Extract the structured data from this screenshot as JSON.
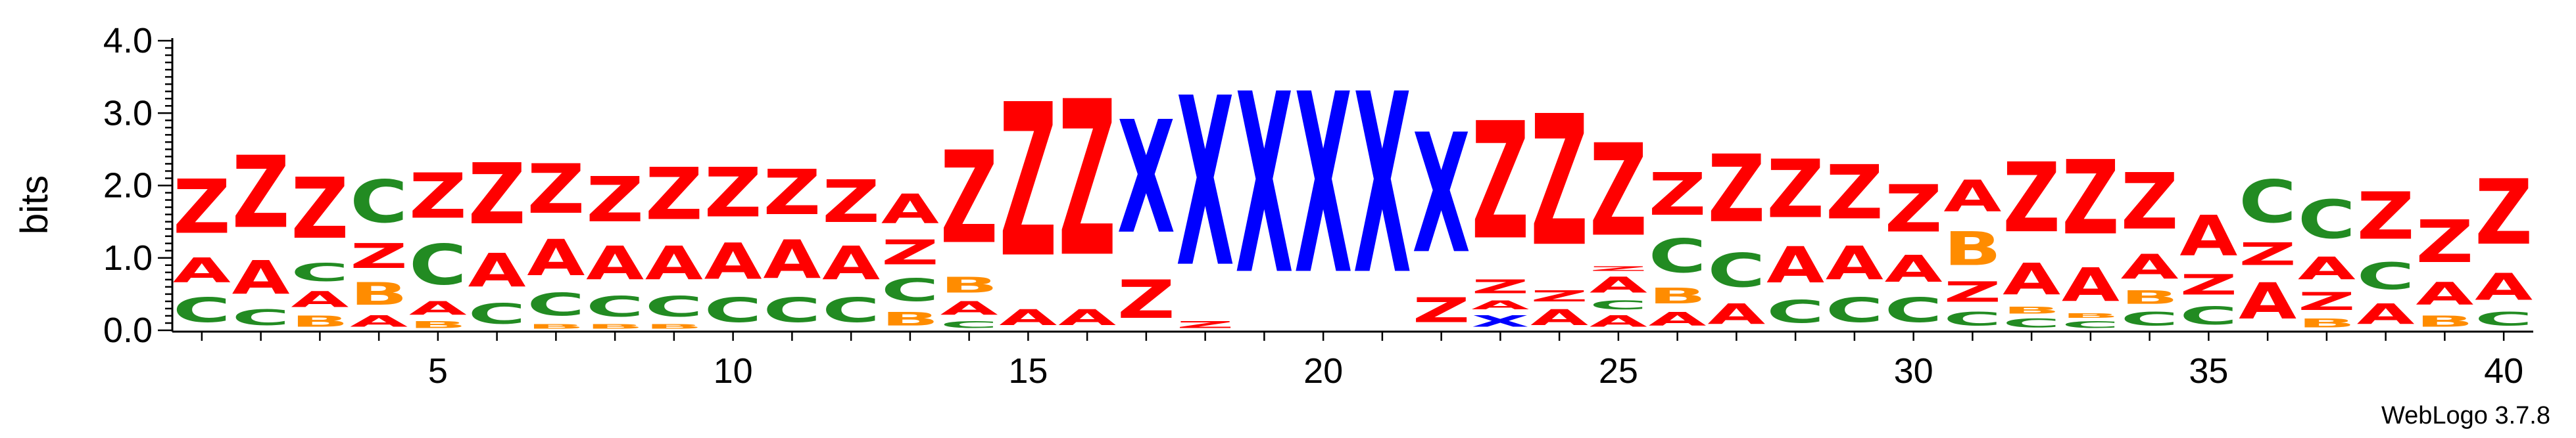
{
  "chart_data": {
    "type": "sequence_logo",
    "ylabel": "bits",
    "xlabel": "",
    "ylim": [
      0,
      4.0
    ],
    "yticks": [
      "0.0",
      "1.0",
      "2.0",
      "3.0",
      "4.0"
    ],
    "xticks": [
      5,
      10,
      15,
      20,
      25,
      30,
      35,
      40
    ],
    "xrange": [
      1,
      40
    ],
    "credit": "WebLogo 3.7.8",
    "colors": {
      "Z": "#ff0000",
      "A": "#ff0000",
      "X": "#0000ff",
      "C": "#228b22",
      "B": "#ff8c00"
    },
    "positions": [
      {
        "pos": 1,
        "stack": [
          [
            "C",
            0.55
          ],
          [
            "A",
            0.55
          ],
          [
            "Z",
            1.2
          ]
        ]
      },
      {
        "pos": 2,
        "stack": [
          [
            "C",
            0.35
          ],
          [
            "A",
            0.75
          ],
          [
            "Z",
            1.6
          ]
        ]
      },
      {
        "pos": 3,
        "stack": [
          [
            "B",
            0.25
          ],
          [
            "A",
            0.35
          ],
          [
            "C",
            0.4
          ],
          [
            "Z",
            1.35
          ]
        ]
      },
      {
        "pos": 4,
        "stack": [
          [
            "A",
            0.25
          ],
          [
            "B",
            0.5
          ],
          [
            "Z",
            0.55
          ],
          [
            "C",
            0.95
          ]
        ]
      },
      {
        "pos": 5,
        "stack": [
          [
            "B",
            0.15
          ],
          [
            "A",
            0.3
          ],
          [
            "C",
            0.9
          ],
          [
            "Z",
            1.0
          ]
        ]
      },
      {
        "pos": 6,
        "stack": [
          [
            "C",
            0.45
          ],
          [
            "A",
            0.75
          ],
          [
            "Z",
            1.35
          ]
        ]
      },
      {
        "pos": 7,
        "stack": [
          [
            "B",
            0.1
          ],
          [
            "C",
            0.5
          ],
          [
            "A",
            0.8
          ],
          [
            "Z",
            1.1
          ]
        ]
      },
      {
        "pos": 8,
        "stack": [
          [
            "B",
            0.1
          ],
          [
            "C",
            0.45
          ],
          [
            "A",
            0.75
          ],
          [
            "Z",
            1.0
          ]
        ]
      },
      {
        "pos": 9,
        "stack": [
          [
            "B",
            0.1
          ],
          [
            "C",
            0.45
          ],
          [
            "A",
            0.75
          ],
          [
            "Z",
            1.15
          ]
        ]
      },
      {
        "pos": 10,
        "stack": [
          [
            "C",
            0.55
          ],
          [
            "A",
            0.8
          ],
          [
            "Z",
            1.1
          ]
        ]
      },
      {
        "pos": 11,
        "stack": [
          [
            "C",
            0.55
          ],
          [
            "A",
            0.85
          ],
          [
            "Z",
            1.0
          ]
        ]
      },
      {
        "pos": 12,
        "stack": [
          [
            "C",
            0.55
          ],
          [
            "A",
            0.75
          ],
          [
            "Z",
            0.95
          ]
        ]
      },
      {
        "pos": 13,
        "stack": [
          [
            "B",
            0.3
          ],
          [
            "C",
            0.5
          ],
          [
            "Z",
            0.55
          ],
          [
            "A",
            0.65
          ]
        ]
      },
      {
        "pos": 14,
        "stack": [
          [
            "C",
            0.15
          ],
          [
            "A",
            0.3
          ],
          [
            "B",
            0.35
          ],
          [
            "Z",
            2.05
          ]
        ]
      },
      {
        "pos": 15,
        "stack": [
          [
            "A",
            0.35
          ],
          [
            "Z",
            3.4
          ]
        ]
      },
      {
        "pos": 16,
        "stack": [
          [
            "A",
            0.35
          ],
          [
            "Z",
            3.45
          ]
        ]
      },
      {
        "pos": 17,
        "stack": [
          [
            "Z",
            0.85
          ],
          [
            "X",
            2.5
          ]
        ]
      },
      {
        "pos": 18,
        "stack": [
          [
            "Z",
            0.15
          ],
          [
            "X",
            3.75
          ]
        ]
      },
      {
        "pos": 19,
        "stack": [
          [
            "X",
            4.0
          ]
        ]
      },
      {
        "pos": 20,
        "stack": [
          [
            "X",
            4.0
          ]
        ]
      },
      {
        "pos": 21,
        "stack": [
          [
            "X",
            4.0
          ]
        ]
      },
      {
        "pos": 22,
        "stack": [
          [
            "Z",
            0.55
          ],
          [
            "X",
            2.65
          ]
        ]
      },
      {
        "pos": 23,
        "stack": [
          [
            "X",
            0.25
          ],
          [
            "A",
            0.2
          ],
          [
            "Z",
            0.3
          ],
          [
            "Z",
            2.6
          ]
        ]
      },
      {
        "pos": 24,
        "stack": [
          [
            "A",
            0.35
          ],
          [
            "Z",
            0.25
          ],
          [
            "Z",
            2.9
          ]
        ]
      },
      {
        "pos": 25,
        "stack": [
          [
            "A",
            0.25
          ],
          [
            "C",
            0.2
          ],
          [
            "A",
            0.35
          ],
          [
            "Z",
            0.1
          ],
          [
            "Z",
            2.05
          ]
        ]
      },
      {
        "pos": 26,
        "stack": [
          [
            "A",
            0.3
          ],
          [
            "B",
            0.35
          ],
          [
            "C",
            0.75
          ],
          [
            "Z",
            0.95
          ]
        ]
      },
      {
        "pos": 27,
        "stack": [
          [
            "A",
            0.45
          ],
          [
            "C",
            0.75
          ],
          [
            "Z",
            1.5
          ]
        ]
      },
      {
        "pos": 28,
        "stack": [
          [
            "C",
            0.5
          ],
          [
            "A",
            0.8
          ],
          [
            "Z",
            1.3
          ]
        ]
      },
      {
        "pos": 29,
        "stack": [
          [
            "C",
            0.55
          ],
          [
            "A",
            0.75
          ],
          [
            "Z",
            1.2
          ]
        ]
      },
      {
        "pos": 30,
        "stack": [
          [
            "C",
            0.55
          ],
          [
            "A",
            0.6
          ],
          [
            "Z",
            1.05
          ]
        ]
      },
      {
        "pos": 31,
        "stack": [
          [
            "C",
            0.3
          ],
          [
            "Z",
            0.45
          ],
          [
            "B",
            0.75
          ],
          [
            "A",
            0.7
          ]
        ]
      },
      {
        "pos": 32,
        "stack": [
          [
            "C",
            0.2
          ],
          [
            "B",
            0.15
          ],
          [
            "A",
            0.7
          ],
          [
            "Z",
            1.55
          ]
        ]
      },
      {
        "pos": 33,
        "stack": [
          [
            "C",
            0.15
          ],
          [
            "B",
            0.1
          ],
          [
            "A",
            0.75
          ],
          [
            "Z",
            1.65
          ]
        ]
      },
      {
        "pos": 34,
        "stack": [
          [
            "C",
            0.3
          ],
          [
            "B",
            0.3
          ],
          [
            "A",
            0.55
          ],
          [
            "Z",
            1.25
          ]
        ]
      },
      {
        "pos": 35,
        "stack": [
          [
            "C",
            0.4
          ],
          [
            "Z",
            0.45
          ],
          [
            "A",
            0.9
          ]
        ]
      },
      {
        "pos": 36,
        "stack": [
          [
            "A",
            0.8
          ],
          [
            "Z",
            0.5
          ],
          [
            "C",
            0.95
          ]
        ]
      },
      {
        "pos": 37,
        "stack": [
          [
            "B",
            0.2
          ],
          [
            "Z",
            0.4
          ],
          [
            "A",
            0.5
          ],
          [
            "C",
            0.85
          ]
        ]
      },
      {
        "pos": 38,
        "stack": [
          [
            "A",
            0.45
          ],
          [
            "C",
            0.6
          ],
          [
            "Z",
            1.05
          ]
        ]
      },
      {
        "pos": 39,
        "stack": [
          [
            "B",
            0.25
          ],
          [
            "A",
            0.5
          ],
          [
            "Z",
            0.95
          ]
        ]
      },
      {
        "pos": 40,
        "stack": [
          [
            "C",
            0.3
          ],
          [
            "A",
            0.6
          ],
          [
            "Z",
            1.45
          ]
        ]
      }
    ]
  }
}
